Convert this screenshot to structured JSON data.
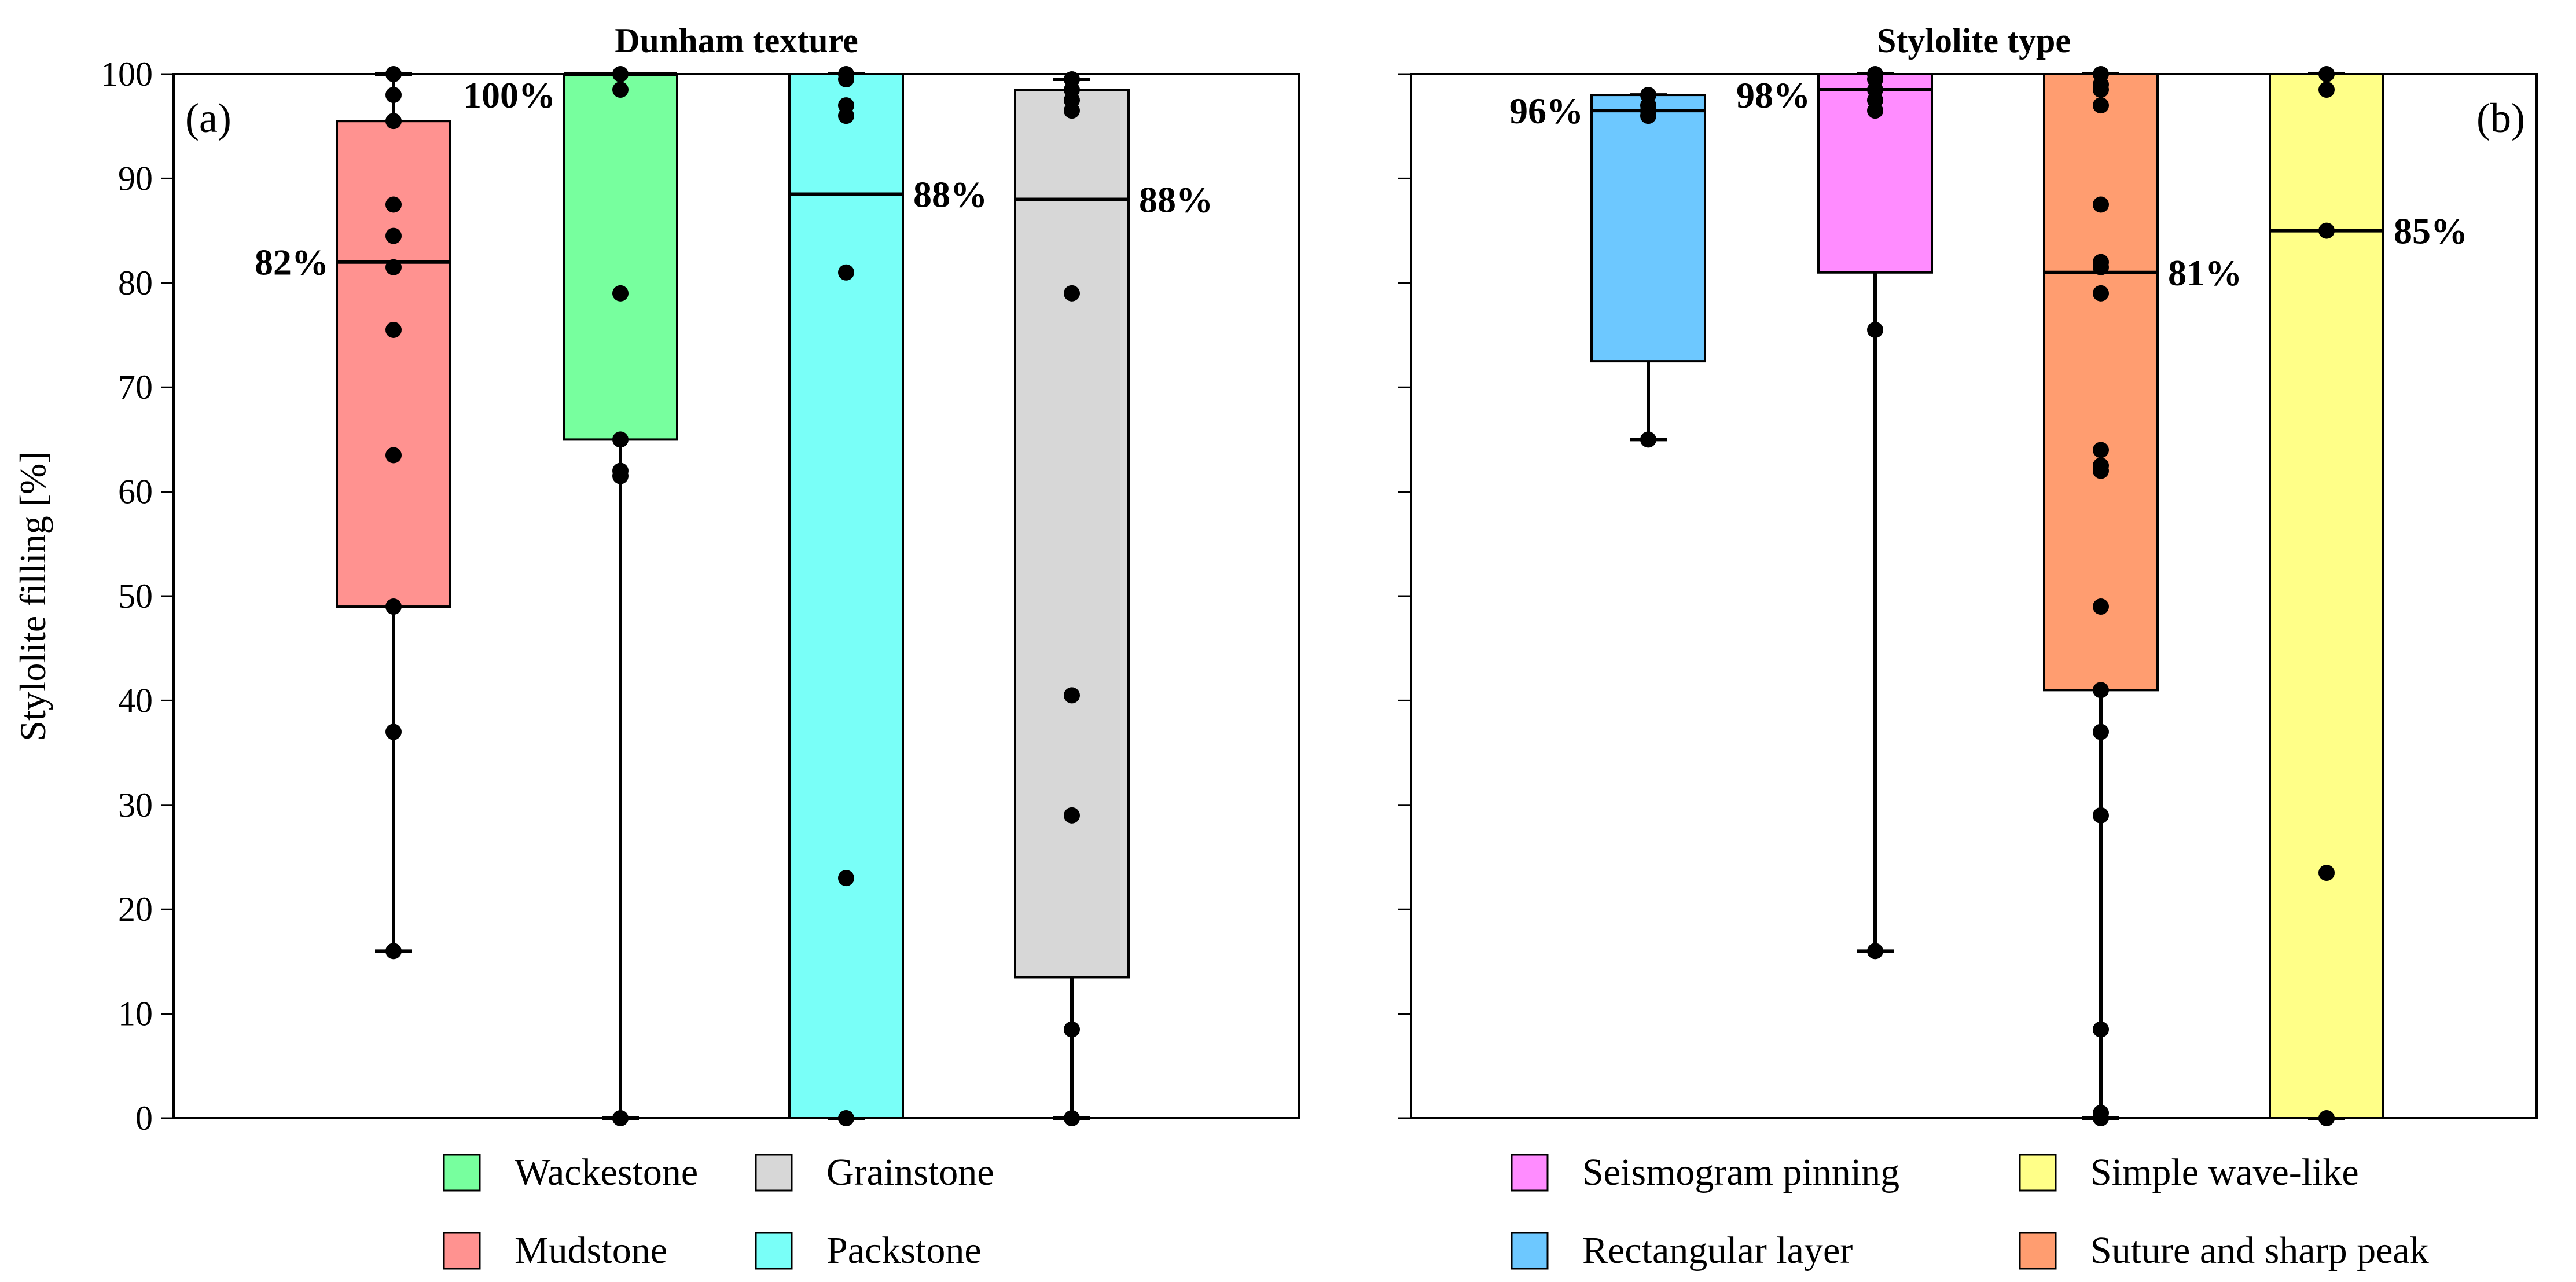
{
  "chart_data": [
    {
      "type": "box",
      "panel_label": "(a)",
      "title": "Dunham texture",
      "ylabel": "Stylolite filling [%]",
      "ylim": [
        0,
        100
      ],
      "yticks": [
        0,
        10,
        20,
        30,
        40,
        50,
        60,
        70,
        80,
        90,
        100
      ],
      "grid": false,
      "legend": [
        {
          "name": "Wackestone",
          "color": "#77ff9e"
        },
        {
          "name": "Grainstone",
          "color": "#d7d7d7"
        },
        {
          "name": "Mudstone",
          "color": "#ff9290"
        },
        {
          "name": "Packstone",
          "color": "#79fff8"
        }
      ],
      "series": [
        {
          "name": "Mudstone",
          "color": "#ff9290",
          "whisker_low": 16,
          "q1": 49,
          "median": 82,
          "q3": 95.5,
          "whisker_high": 100,
          "median_label": "82%",
          "label_side": "left",
          "points": [
            100,
            98,
            95.5,
            87.5,
            84.5,
            81.5,
            75.5,
            63.5,
            49,
            37,
            16
          ]
        },
        {
          "name": "Wackestone",
          "color": "#77ff9e",
          "whisker_low": 0,
          "q1": 65,
          "median": 100,
          "q3": 100,
          "whisker_high": 100,
          "median_label": "100%",
          "label_side": "left",
          "points": [
            100,
            98.5,
            79,
            65,
            62,
            61.5,
            0
          ]
        },
        {
          "name": "Packstone",
          "color": "#79fff8",
          "whisker_low": 0,
          "q1": 0,
          "median": 88.5,
          "q3": 100,
          "whisker_high": 100,
          "median_label": "88%",
          "label_side": "right",
          "points": [
            100,
            99.5,
            97,
            96,
            81,
            23,
            0
          ]
        },
        {
          "name": "Grainstone",
          "color": "#d7d7d7",
          "whisker_low": 0,
          "q1": 13.5,
          "median": 88,
          "q3": 98.5,
          "whisker_high": 99.5,
          "median_label": "88%",
          "label_side": "right",
          "points": [
            99.5,
            98.5,
            97.5,
            96.5,
            79,
            40.5,
            29,
            8.5,
            0
          ]
        }
      ]
    },
    {
      "type": "box",
      "panel_label": "(b)",
      "title": "Stylolite type",
      "ylim": [
        0,
        100
      ],
      "grid": false,
      "legend": [
        {
          "name": "Seismogram pinning",
          "color": "#ff8cff"
        },
        {
          "name": "Simple wave-like",
          "color": "#ffff88"
        },
        {
          "name": "Rectangular layer",
          "color": "#6dc8ff"
        },
        {
          "name": "Suture and sharp peak",
          "color": "#ff9d70"
        }
      ],
      "series": [
        {
          "name": "Rectangular layer",
          "color": "#6dc8ff",
          "whisker_low": 65,
          "q1": 72.5,
          "median": 96.5,
          "q3": 98,
          "whisker_high": 98,
          "median_label": "96%",
          "label_side": "left",
          "points": [
            98,
            97,
            96.5,
            96,
            65
          ]
        },
        {
          "name": "Seismogram pinning",
          "color": "#ff8cff",
          "whisker_low": 16,
          "q1": 81,
          "median": 98.5,
          "q3": 100,
          "whisker_high": 100,
          "median_label": "98%",
          "label_side": "left",
          "points": [
            100,
            99.5,
            98.5,
            97.5,
            96.5,
            75.5,
            16
          ]
        },
        {
          "name": "Suture and sharp peak",
          "color": "#ff9d70",
          "whisker_low": 0,
          "q1": 41,
          "median": 81,
          "q3": 100,
          "whisker_high": 100,
          "median_label": "81%",
          "label_side": "right",
          "points": [
            100,
            99,
            98.5,
            97,
            87.5,
            82,
            81.5,
            79,
            64,
            62.5,
            62,
            49,
            41,
            37,
            29,
            8.5,
            0.5,
            0
          ]
        },
        {
          "name": "Simple wave-like",
          "color": "#ffff88",
          "whisker_low": 0,
          "q1": 0,
          "median": 85,
          "q3": 100,
          "whisker_high": 100,
          "median_label": "85%",
          "label_side": "right",
          "points": [
            100,
            98.5,
            85,
            23.5,
            0
          ]
        }
      ]
    }
  ]
}
